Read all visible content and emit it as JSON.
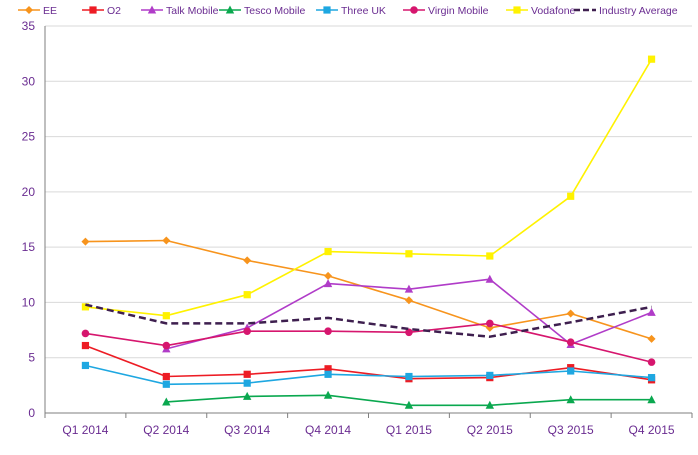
{
  "chart_data": {
    "type": "line",
    "title": "",
    "xlabel": "",
    "ylabel": "",
    "categories": [
      "Q1 2014",
      "Q2 2014",
      "Q3 2014",
      "Q4 2014",
      "Q1 2015",
      "Q2 2015",
      "Q3 2015",
      "Q4 2015"
    ],
    "ylim": [
      0,
      35
    ],
    "yticks": [
      0,
      5,
      10,
      15,
      20,
      25,
      30,
      35
    ],
    "grid": "horizontal",
    "legend_position": "top",
    "series": [
      {
        "name": "EE",
        "color": "#f7941d",
        "marker": "diamond",
        "dashed": false,
        "values": [
          15.5,
          15.6,
          13.8,
          12.4,
          10.2,
          7.7,
          9.0,
          6.7
        ]
      },
      {
        "name": "O2",
        "color": "#ed1c24",
        "marker": "square",
        "dashed": false,
        "values": [
          6.1,
          3.3,
          3.5,
          4.0,
          3.1,
          3.2,
          4.1,
          3.0
        ]
      },
      {
        "name": "Talk Mobile",
        "color": "#b03cc8",
        "marker": "triangle",
        "dashed": false,
        "values": [
          null,
          5.8,
          7.7,
          11.7,
          11.2,
          12.1,
          6.2,
          9.1
        ]
      },
      {
        "name": "Tesco Mobile",
        "color": "#0aa84f",
        "marker": "triangle",
        "dashed": false,
        "values": [
          null,
          1.0,
          1.5,
          1.6,
          0.7,
          0.7,
          1.2,
          1.2
        ]
      },
      {
        "name": "Three UK",
        "color": "#1ea7e1",
        "marker": "square",
        "dashed": false,
        "values": [
          4.3,
          2.6,
          2.7,
          3.5,
          3.3,
          3.4,
          3.8,
          3.2
        ]
      },
      {
        "name": "Virgin Mobile",
        "color": "#d6166e",
        "marker": "circle",
        "dashed": false,
        "values": [
          7.2,
          6.1,
          7.4,
          7.4,
          7.3,
          8.1,
          6.4,
          4.6
        ]
      },
      {
        "name": "Vodafone",
        "color": "#fff200",
        "marker": "square",
        "dashed": false,
        "values": [
          9.6,
          8.8,
          10.7,
          14.6,
          14.4,
          14.2,
          19.6,
          32.0
        ]
      },
      {
        "name": "Industry Average",
        "color": "#3e1f4f",
        "marker": "none",
        "dashed": true,
        "values": [
          9.8,
          8.1,
          8.1,
          8.6,
          7.6,
          6.9,
          8.2,
          9.6
        ]
      }
    ]
  }
}
